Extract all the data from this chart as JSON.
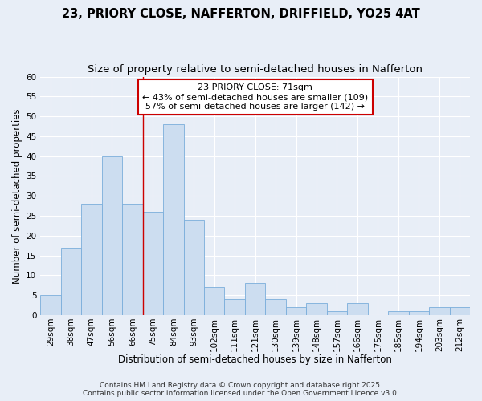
{
  "title_line1": "23, PRIORY CLOSE, NAFFERTON, DRIFFIELD, YO25 4AT",
  "title_line2": "Size of property relative to semi-detached houses in Nafferton",
  "xlabel": "Distribution of semi-detached houses by size in Nafferton",
  "ylabel": "Number of semi-detached properties",
  "categories": [
    "29sqm",
    "38sqm",
    "47sqm",
    "56sqm",
    "66sqm",
    "75sqm",
    "84sqm",
    "93sqm",
    "102sqm",
    "111sqm",
    "121sqm",
    "130sqm",
    "139sqm",
    "148sqm",
    "157sqm",
    "166sqm",
    "175sqm",
    "185sqm",
    "194sqm",
    "203sqm",
    "212sqm"
  ],
  "values": [
    5,
    17,
    28,
    40,
    28,
    26,
    48,
    24,
    7,
    4,
    8,
    4,
    2,
    3,
    1,
    3,
    0,
    1,
    1,
    2,
    2
  ],
  "bar_color": "#ccddf0",
  "bar_edge_color": "#7aaddb",
  "background_color": "#e8eef7",
  "plot_bg_color": "#e8eef7",
  "grid_color": "#ffffff",
  "annotation_line1": "23 PRIORY CLOSE: 71sqm",
  "annotation_line2": "← 43% of semi-detached houses are smaller (109)",
  "annotation_line3": "57% of semi-detached houses are larger (142) →",
  "annotation_box_color": "#ffffff",
  "annotation_box_edge_color": "#cc0000",
  "vline_x": 4.5,
  "vline_color": "#cc0000",
  "ylim": [
    0,
    60
  ],
  "yticks": [
    0,
    5,
    10,
    15,
    20,
    25,
    30,
    35,
    40,
    45,
    50,
    55,
    60
  ],
  "footer_text": "Contains HM Land Registry data © Crown copyright and database right 2025.\nContains public sector information licensed under the Open Government Licence v3.0.",
  "title_fontsize": 10.5,
  "subtitle_fontsize": 9.5,
  "axis_label_fontsize": 8.5,
  "tick_fontsize": 7.5,
  "annotation_fontsize": 8,
  "footer_fontsize": 6.5
}
